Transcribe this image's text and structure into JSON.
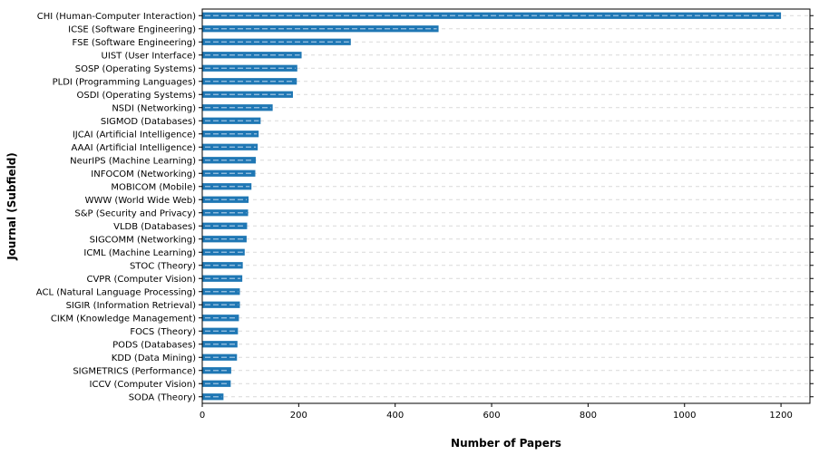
{
  "chart_data": {
    "type": "bar",
    "orientation": "horizontal",
    "xlabel": "Number of Papers",
    "ylabel": "Journal (Subfield)",
    "xlim": [
      0,
      1260
    ],
    "xticks": [
      0,
      200,
      400,
      600,
      800,
      1000,
      1200
    ],
    "grid": "horizontal dashed",
    "bar_color": "#1f77b4",
    "categories": [
      "CHI (Human-Computer Interaction)",
      "ICSE (Software Engineering)",
      "FSE (Software Engineering)",
      "UIST (User Interface)",
      "SOSP (Operating Systems)",
      "PLDI (Programming Languages)",
      "OSDI (Operating Systems)",
      "NSDI (Networking)",
      "SIGMOD (Databases)",
      "IJCAI (Artificial Intelligence)",
      "AAAI (Artificial Intelligence)",
      "NeurIPS (Machine Learning)",
      "INFOCOM (Networking)",
      "MOBICOM (Mobile)",
      "WWW (World Wide Web)",
      "S&P (Security and Privacy)",
      "VLDB (Databases)",
      "SIGCOMM (Networking)",
      "ICML (Machine Learning)",
      "STOC (Theory)",
      "CVPR (Computer Vision)",
      "ACL (Natural Language Processing)",
      "SIGIR (Information Retrieval)",
      "CIKM (Knowledge Management)",
      "FOCS (Theory)",
      "PODS (Databases)",
      "KDD (Data Mining)",
      "SIGMETRICS (Performance)",
      "ICCV (Computer Vision)",
      "SODA (Theory)"
    ],
    "values": [
      1200,
      490,
      308,
      206,
      197,
      196,
      188,
      146,
      121,
      117,
      115,
      111,
      110,
      102,
      96,
      95,
      93,
      92,
      88,
      84,
      83,
      78,
      78,
      76,
      74,
      73,
      72,
      60,
      59,
      44
    ]
  }
}
